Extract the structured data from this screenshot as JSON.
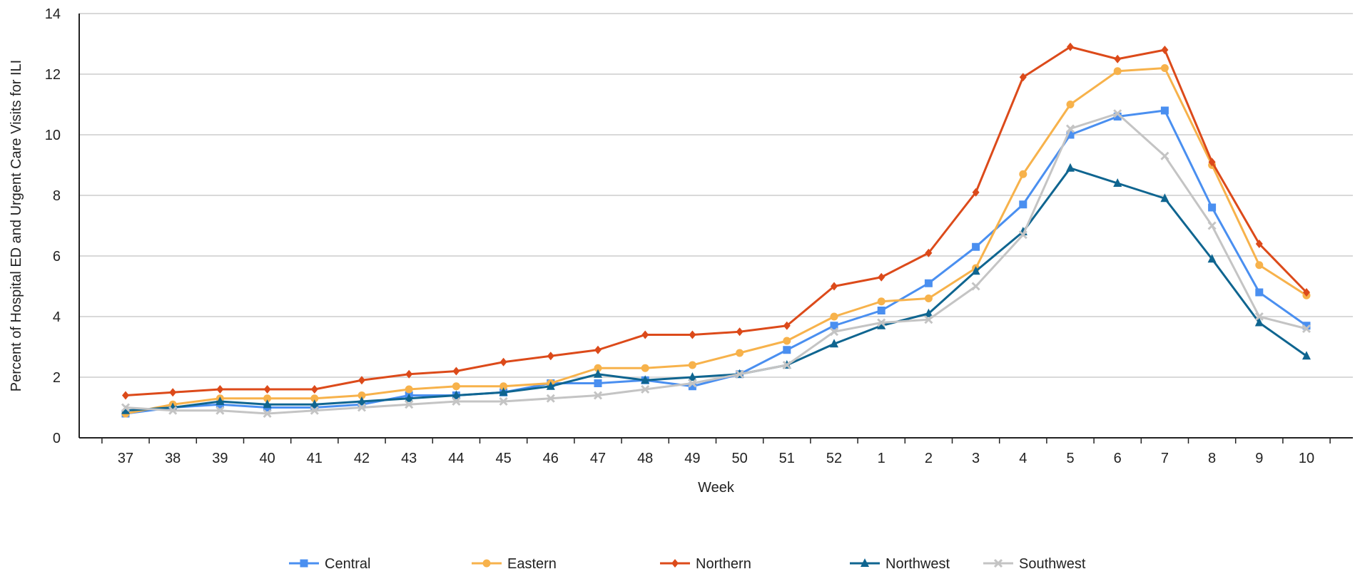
{
  "chart_data": {
    "type": "line",
    "title": "",
    "xlabel": "Week",
    "ylabel": "Percent of Hospital ED and Urgent Care Visits for ILI",
    "ylim": [
      0,
      14
    ],
    "yticks": [
      "0",
      "2",
      "4",
      "6",
      "8",
      "10",
      "12",
      "14"
    ],
    "categories": [
      "37",
      "38",
      "39",
      "40",
      "41",
      "42",
      "43",
      "44",
      "45",
      "46",
      "47",
      "48",
      "49",
      "50",
      "51",
      "52",
      "1",
      "2",
      "3",
      "4",
      "5",
      "6",
      "7",
      "8",
      "9",
      "10"
    ],
    "grid": "horizontal",
    "legend_position": "bottom",
    "series": [
      {
        "name": "Central",
        "color": "#4a8ff0",
        "marker": "square",
        "values": [
          0.8,
          1.0,
          1.1,
          1.0,
          1.0,
          1.1,
          1.4,
          1.4,
          1.5,
          1.8,
          1.8,
          1.9,
          1.7,
          2.1,
          2.9,
          3.7,
          4.2,
          5.1,
          6.3,
          7.7,
          10.0,
          10.6,
          10.8,
          7.6,
          4.8,
          3.7
        ]
      },
      {
        "name": "Eastern",
        "color": "#f7b24b",
        "marker": "circle",
        "values": [
          0.8,
          1.1,
          1.3,
          1.3,
          1.3,
          1.4,
          1.6,
          1.7,
          1.7,
          1.8,
          2.3,
          2.3,
          2.4,
          2.8,
          3.2,
          4.0,
          4.5,
          4.6,
          5.6,
          8.7,
          11.0,
          12.1,
          12.2,
          9.0,
          5.7,
          4.7
        ]
      },
      {
        "name": "Northern",
        "color": "#dc4a1a",
        "marker": "diamond",
        "values": [
          1.4,
          1.5,
          1.6,
          1.6,
          1.6,
          1.9,
          2.1,
          2.2,
          2.5,
          2.7,
          2.9,
          3.4,
          3.4,
          3.5,
          3.7,
          5.0,
          5.3,
          6.1,
          8.1,
          11.9,
          12.9,
          12.5,
          12.8,
          9.1,
          6.4,
          4.8
        ]
      },
      {
        "name": "Northwest",
        "color": "#0f6590",
        "marker": "triangle",
        "values": [
          0.9,
          1.0,
          1.2,
          1.1,
          1.1,
          1.2,
          1.3,
          1.4,
          1.5,
          1.7,
          2.1,
          1.9,
          2.0,
          2.1,
          2.4,
          3.1,
          3.7,
          4.1,
          5.5,
          6.8,
          8.9,
          8.4,
          7.9,
          5.9,
          3.8,
          2.7
        ]
      },
      {
        "name": "Southwest",
        "color": "#c4c4c4",
        "marker": "x",
        "values": [
          1.0,
          0.9,
          0.9,
          0.8,
          0.9,
          1.0,
          1.1,
          1.2,
          1.2,
          1.3,
          1.4,
          1.6,
          1.8,
          2.1,
          2.4,
          3.5,
          3.8,
          3.9,
          5.0,
          6.7,
          10.2,
          10.7,
          9.3,
          7.0,
          4.0,
          3.6
        ]
      }
    ]
  }
}
